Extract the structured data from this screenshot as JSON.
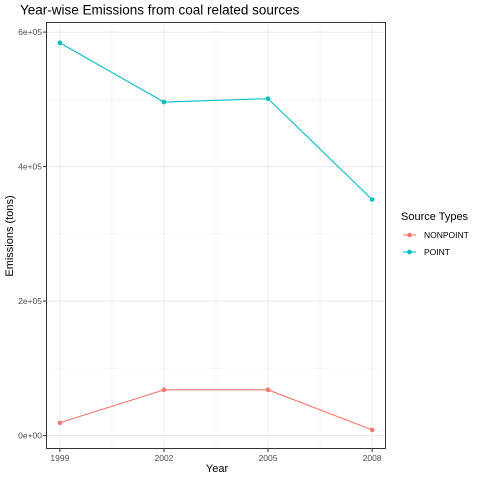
{
  "chart_data": {
    "type": "line",
    "title": "Year-wise Emissions from coal related sources",
    "xlabel": "Year",
    "ylabel": "Emissions  (tons)",
    "x": [
      1999,
      2002,
      2005,
      2008
    ],
    "x_tick_labels": [
      "1999",
      "2002",
      "2005",
      "2008"
    ],
    "y_ticks": [
      0,
      200000,
      400000,
      600000
    ],
    "y_tick_labels": [
      "0e+00",
      "2e+05",
      "4e+05",
      "6e+05"
    ],
    "xlim": [
      1998.6,
      2008.4
    ],
    "ylim": [
      -20000,
      615000
    ],
    "grid": true,
    "legend": {
      "title": "Source Types",
      "placement": "right"
    },
    "series": [
      {
        "name": "NONPOINT",
        "color": "#F8766D",
        "values": [
          19000,
          68000,
          68000,
          8500
        ]
      },
      {
        "name": "POINT",
        "color": "#00BFC4",
        "values": [
          584000,
          496000,
          501000,
          351000
        ]
      }
    ]
  }
}
